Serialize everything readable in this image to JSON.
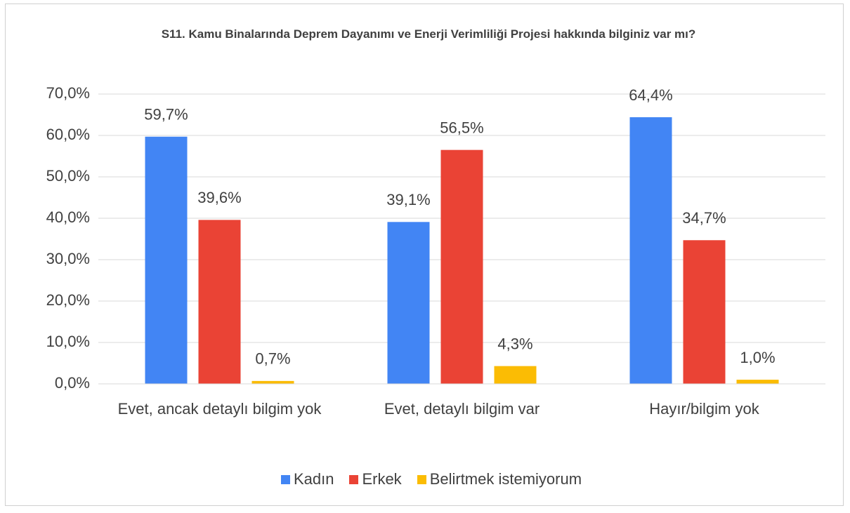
{
  "chart_data": {
    "type": "bar",
    "title": "S11. Kamu Binalarında Deprem Dayanımı ve Enerji Verimliliği Projesi hakkında bilginiz var mı?",
    "categories": [
      "Evet, ancak detaylı bilgim yok",
      "Evet, detaylı bilgim var",
      "Hayır/bilgim yok"
    ],
    "series": [
      {
        "name": "Kadın",
        "color": "#4285f4",
        "values": [
          59.7,
          39.1,
          64.4
        ],
        "value_labels": [
          "59,7%",
          "39,1%",
          "64,4%"
        ]
      },
      {
        "name": "Erkek",
        "color": "#ea4335",
        "values": [
          39.6,
          56.5,
          34.7
        ],
        "value_labels": [
          "39,6%",
          "56,5%",
          "34,7%"
        ]
      },
      {
        "name": "Belirtmek istemiyorum",
        "color": "#fbbc04",
        "values": [
          0.7,
          4.3,
          1.0
        ],
        "value_labels": [
          "0,7%",
          "4,3%",
          "1,0%"
        ]
      }
    ],
    "ylim": [
      0,
      70
    ],
    "yticks": [
      {
        "value": 0,
        "label": "0,0%"
      },
      {
        "value": 10,
        "label": "10,0%"
      },
      {
        "value": 20,
        "label": "20,0%"
      },
      {
        "value": 30,
        "label": "30,0%"
      },
      {
        "value": 40,
        "label": "40,0%"
      },
      {
        "value": 50,
        "label": "50,0%"
      },
      {
        "value": 60,
        "label": "60,0%"
      },
      {
        "value": 70,
        "label": "70,0%"
      }
    ],
    "grid": true,
    "legend": "bottom"
  }
}
